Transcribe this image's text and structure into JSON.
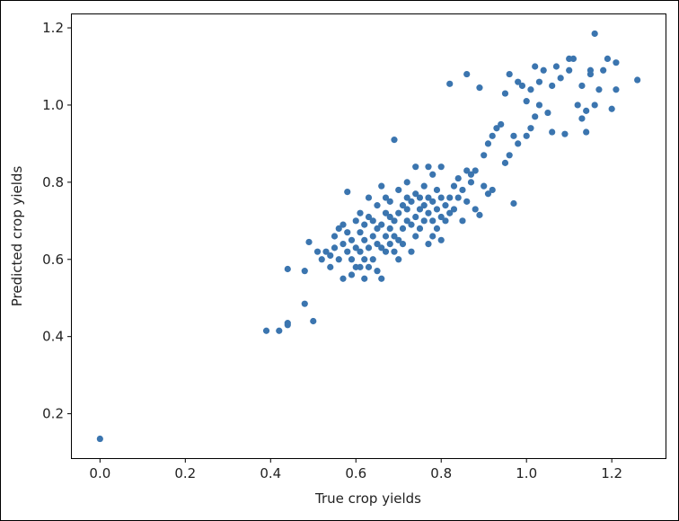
{
  "chart_data": {
    "type": "scatter",
    "title": "",
    "xlabel": "True crop yields",
    "ylabel": "Predicted crop yields",
    "xlim": [
      -0.066,
      1.326
    ],
    "ylim": [
      0.085,
      1.235
    ],
    "grid": false,
    "legend": "none",
    "xticks": [
      "0.0",
      "0.2",
      "0.4",
      "0.6",
      "0.8",
      "1.0",
      "1.2"
    ],
    "yticks": [
      "0.2",
      "0.4",
      "0.6",
      "0.8",
      "1.0",
      "1.2"
    ],
    "marker_color": "#3b75af",
    "points": [
      [
        0.0,
        0.135
      ],
      [
        0.39,
        0.415
      ],
      [
        0.42,
        0.415
      ],
      [
        0.44,
        0.43
      ],
      [
        0.44,
        0.435
      ],
      [
        0.44,
        0.575
      ],
      [
        0.48,
        0.485
      ],
      [
        0.48,
        0.57
      ],
      [
        0.49,
        0.645
      ],
      [
        0.5,
        0.44
      ],
      [
        0.51,
        0.62
      ],
      [
        0.52,
        0.6
      ],
      [
        0.53,
        0.62
      ],
      [
        0.54,
        0.58
      ],
      [
        0.54,
        0.61
      ],
      [
        0.55,
        0.66
      ],
      [
        0.55,
        0.63
      ],
      [
        0.56,
        0.6
      ],
      [
        0.56,
        0.68
      ],
      [
        0.57,
        0.55
      ],
      [
        0.57,
        0.64
      ],
      [
        0.57,
        0.69
      ],
      [
        0.58,
        0.62
      ],
      [
        0.58,
        0.67
      ],
      [
        0.58,
        0.775
      ],
      [
        0.59,
        0.56
      ],
      [
        0.59,
        0.6
      ],
      [
        0.59,
        0.65
      ],
      [
        0.6,
        0.58
      ],
      [
        0.6,
        0.63
      ],
      [
        0.6,
        0.7
      ],
      [
        0.61,
        0.58
      ],
      [
        0.61,
        0.62
      ],
      [
        0.61,
        0.67
      ],
      [
        0.61,
        0.72
      ],
      [
        0.62,
        0.55
      ],
      [
        0.62,
        0.6
      ],
      [
        0.62,
        0.65
      ],
      [
        0.62,
        0.69
      ],
      [
        0.63,
        0.58
      ],
      [
        0.63,
        0.63
      ],
      [
        0.63,
        0.71
      ],
      [
        0.63,
        0.76
      ],
      [
        0.64,
        0.6
      ],
      [
        0.64,
        0.66
      ],
      [
        0.64,
        0.7
      ],
      [
        0.65,
        0.57
      ],
      [
        0.65,
        0.64
      ],
      [
        0.65,
        0.68
      ],
      [
        0.65,
        0.74
      ],
      [
        0.66,
        0.55
      ],
      [
        0.66,
        0.63
      ],
      [
        0.66,
        0.69
      ],
      [
        0.66,
        0.79
      ],
      [
        0.67,
        0.62
      ],
      [
        0.67,
        0.66
      ],
      [
        0.67,
        0.72
      ],
      [
        0.67,
        0.76
      ],
      [
        0.68,
        0.64
      ],
      [
        0.68,
        0.68
      ],
      [
        0.68,
        0.71
      ],
      [
        0.68,
        0.75
      ],
      [
        0.69,
        0.91
      ],
      [
        0.69,
        0.62
      ],
      [
        0.69,
        0.66
      ],
      [
        0.69,
        0.7
      ],
      [
        0.7,
        0.6
      ],
      [
        0.7,
        0.65
      ],
      [
        0.7,
        0.72
      ],
      [
        0.7,
        0.78
      ],
      [
        0.71,
        0.64
      ],
      [
        0.71,
        0.68
      ],
      [
        0.71,
        0.74
      ],
      [
        0.72,
        0.7
      ],
      [
        0.72,
        0.73
      ],
      [
        0.72,
        0.76
      ],
      [
        0.72,
        0.8
      ],
      [
        0.73,
        0.62
      ],
      [
        0.73,
        0.69
      ],
      [
        0.73,
        0.75
      ],
      [
        0.74,
        0.66
      ],
      [
        0.74,
        0.71
      ],
      [
        0.74,
        0.77
      ],
      [
        0.74,
        0.84
      ],
      [
        0.75,
        0.68
      ],
      [
        0.75,
        0.73
      ],
      [
        0.75,
        0.76
      ],
      [
        0.76,
        0.7
      ],
      [
        0.76,
        0.74
      ],
      [
        0.76,
        0.79
      ],
      [
        0.77,
        0.64
      ],
      [
        0.77,
        0.72
      ],
      [
        0.77,
        0.76
      ],
      [
        0.77,
        0.84
      ],
      [
        0.78,
        0.66
      ],
      [
        0.78,
        0.7
      ],
      [
        0.78,
        0.75
      ],
      [
        0.78,
        0.82
      ],
      [
        0.79,
        0.68
      ],
      [
        0.79,
        0.73
      ],
      [
        0.79,
        0.78
      ],
      [
        0.8,
        0.65
      ],
      [
        0.8,
        0.71
      ],
      [
        0.8,
        0.76
      ],
      [
        0.8,
        0.84
      ],
      [
        0.81,
        0.7
      ],
      [
        0.81,
        0.74
      ],
      [
        0.82,
        0.72
      ],
      [
        0.82,
        0.76
      ],
      [
        0.82,
        1.055
      ],
      [
        0.83,
        0.79
      ],
      [
        0.83,
        0.73
      ],
      [
        0.84,
        0.76
      ],
      [
        0.84,
        0.81
      ],
      [
        0.85,
        0.7
      ],
      [
        0.85,
        0.78
      ],
      [
        0.86,
        0.75
      ],
      [
        0.86,
        0.83
      ],
      [
        0.86,
        1.08
      ],
      [
        0.87,
        0.82
      ],
      [
        0.87,
        0.8
      ],
      [
        0.88,
        0.83
      ],
      [
        0.88,
        0.73
      ],
      [
        0.89,
        0.715
      ],
      [
        0.89,
        1.045
      ],
      [
        0.9,
        0.79
      ],
      [
        0.9,
        0.87
      ],
      [
        0.91,
        0.9
      ],
      [
        0.91,
        0.77
      ],
      [
        0.92,
        0.92
      ],
      [
        0.92,
        0.78
      ],
      [
        0.93,
        0.94
      ],
      [
        0.94,
        0.95
      ],
      [
        0.95,
        1.03
      ],
      [
        0.95,
        0.85
      ],
      [
        0.96,
        0.87
      ],
      [
        0.96,
        1.08
      ],
      [
        0.97,
        0.92
      ],
      [
        0.97,
        0.745
      ],
      [
        0.98,
        0.9
      ],
      [
        0.98,
        1.06
      ],
      [
        0.99,
        1.05
      ],
      [
        1.0,
        0.92
      ],
      [
        1.0,
        1.01
      ],
      [
        1.01,
        1.04
      ],
      [
        1.01,
        0.94
      ],
      [
        1.02,
        1.1
      ],
      [
        1.02,
        0.97
      ],
      [
        1.03,
        1.0
      ],
      [
        1.03,
        1.06
      ],
      [
        1.04,
        1.09
      ],
      [
        1.05,
        0.98
      ],
      [
        1.06,
        0.93
      ],
      [
        1.06,
        1.05
      ],
      [
        1.07,
        1.1
      ],
      [
        1.08,
        1.07
      ],
      [
        1.09,
        0.925
      ],
      [
        1.1,
        1.09
      ],
      [
        1.1,
        1.12
      ],
      [
        1.11,
        1.12
      ],
      [
        1.12,
        1.0
      ],
      [
        1.13,
        0.965
      ],
      [
        1.13,
        1.05
      ],
      [
        1.14,
        0.985
      ],
      [
        1.14,
        0.93
      ],
      [
        1.15,
        1.08
      ],
      [
        1.15,
        1.09
      ],
      [
        1.16,
        1.185
      ],
      [
        1.16,
        1.0
      ],
      [
        1.17,
        1.04
      ],
      [
        1.18,
        1.09
      ],
      [
        1.19,
        1.12
      ],
      [
        1.2,
        0.99
      ],
      [
        1.21,
        1.04
      ],
      [
        1.21,
        1.11
      ],
      [
        1.26,
        1.065
      ]
    ]
  }
}
